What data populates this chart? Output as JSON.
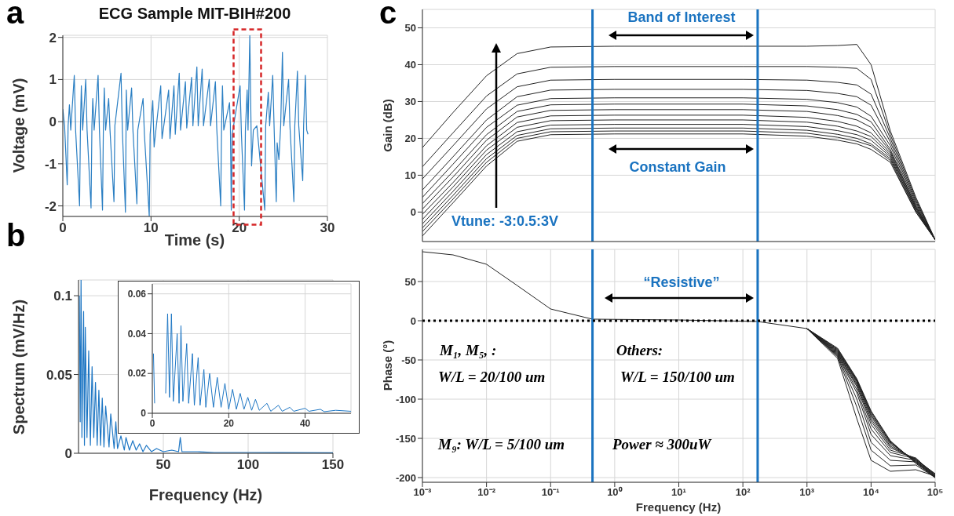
{
  "chart_data": [
    {
      "type": "line",
      "title": "ECG Sample MIT-BIH#200",
      "xlabel": "Time (s)",
      "ylabel": "Voltage (mV)",
      "xlim": [
        0,
        30
      ],
      "xticks": [
        0,
        10,
        20,
        30
      ],
      "ylim": [
        -2.25,
        2.05
      ],
      "yticks": [
        -2,
        -1,
        0,
        1,
        2
      ],
      "grid": true,
      "annotations": [
        "a"
      ],
      "series": [
        {
          "color": "#2b7fc3",
          "x": [
            0,
            0.2,
            0.5,
            0.6,
            0.75,
            0.9,
            1.3,
            1.45,
            1.9,
            2.0,
            2.1,
            2.25,
            2.6,
            2.75,
            3.2,
            3.3,
            3.4,
            3.55,
            4.0,
            4.15,
            4.5,
            4.6,
            4.7,
            4.85,
            5.2,
            5.35,
            5.8,
            5.9,
            6.6,
            6.75,
            7.1,
            7.2,
            7.35,
            7.8,
            7.95,
            8.4,
            8.5,
            9.1,
            9.25,
            9.8,
            9.9,
            10.2,
            10.35,
            10.5,
            11.1,
            11.25,
            12.0,
            12.15,
            12.6,
            12.75,
            13.2,
            13.35,
            13.9,
            14.05,
            14.6,
            14.75,
            15.2,
            15.35,
            15.8,
            15.95,
            16.6,
            16.75,
            17.3,
            17.45,
            17.9,
            18.0,
            18.1,
            18.25,
            18.9,
            19.0,
            19.1,
            19.2,
            20.1,
            20.25,
            20.6,
            20.7,
            20.9,
            21.0,
            21.2,
            21.4,
            21.6,
            22.0,
            22.9,
            23.0,
            23.3,
            23.45,
            23.8,
            23.95,
            24.2,
            24.3,
            24.5,
            24.7,
            24.9,
            25.05,
            25.6,
            25.75,
            26.2,
            26.3,
            26.6,
            26.75,
            27.2,
            27.3,
            27.5,
            27.65,
            27.8
          ],
          "values": [
            0.3,
            -0.1,
            -1.5,
            -0.1,
            0.4,
            -0.2,
            1.1,
            -0.2,
            -2.0,
            -0.1,
            0.85,
            -0.2,
            1.0,
            -0.2,
            -2.05,
            -0.1,
            0.55,
            -0.2,
            1.1,
            -0.2,
            -2.1,
            -0.1,
            0.8,
            -0.2,
            0.55,
            -0.2,
            -1.9,
            -0.1,
            1.15,
            -0.2,
            -2.15,
            0.75,
            -0.2,
            0.8,
            -0.2,
            -1.95,
            -0.2,
            0.55,
            -0.3,
            -2.25,
            -0.3,
            0.5,
            -0.6,
            -0.3,
            0.85,
            -0.4,
            0.75,
            -0.4,
            0.85,
            -0.3,
            1.15,
            -0.2,
            0.95,
            -0.15,
            1.05,
            -0.1,
            1.3,
            -0.1,
            1.25,
            -0.1,
            1.0,
            -0.1,
            0.95,
            -0.15,
            -2.0,
            -0.1,
            0.85,
            -0.2,
            0.45,
            -0.1,
            -2.1,
            -0.3,
            0.85,
            -0.3,
            -2.1,
            -0.2,
            0.75,
            -0.2,
            2.05,
            -1.05,
            -0.2,
            -0.1,
            -2.1,
            -0.1,
            0.7,
            -0.1,
            1.1,
            -0.1,
            -1.9,
            -0.5,
            -0.9,
            -0.1,
            1.65,
            -0.1,
            1.0,
            -0.1,
            -1.9,
            -0.1,
            1.2,
            -0.1,
            -1.4,
            -0.1,
            1.1,
            -0.2,
            -0.3
          ]
        }
      ]
    },
    {
      "type": "line",
      "xlabel": "Frequency (Hz)",
      "ylabel": "Spectrum (mV/Hz)",
      "xlim": [
        0,
        150
      ],
      "xticks": [
        50,
        100,
        150
      ],
      "ylim": [
        0,
        0.11
      ],
      "yticks": [
        0,
        0.05,
        0.1
      ],
      "grid": true,
      "annotations": [
        "b"
      ],
      "series": [
        {
          "color": "#1f77c4",
          "x": [
            0.5,
            1,
            1.5,
            2,
            3,
            3.5,
            4,
            5,
            6,
            7,
            8,
            9,
            10,
            11,
            12,
            13,
            14,
            15,
            16,
            18,
            19,
            21,
            22,
            23,
            25,
            27,
            28,
            30,
            32,
            34,
            36,
            38,
            40,
            43,
            46,
            50,
            55,
            59,
            60,
            61,
            70,
            80,
            100,
            120,
            150
          ],
          "values": [
            0.1,
            0.02,
            0.11,
            0.01,
            0.09,
            0.005,
            0.08,
            0.01,
            0.065,
            0.005,
            0.055,
            0.01,
            0.045,
            0.005,
            0.04,
            0.005,
            0.035,
            0.004,
            0.03,
            0.004,
            0.025,
            0.003,
            0.02,
            0.003,
            0.011,
            0.002,
            0.01,
            0.002,
            0.008,
            0.002,
            0.006,
            0.001,
            0.005,
            0.001,
            0.003,
            0.001,
            0.002,
            0.001,
            0.01,
            0.001,
            0.001,
            0.0005,
            0.0005,
            0.0004,
            0.0003
          ]
        }
      ]
    },
    {
      "type": "line",
      "xlim": [
        0,
        52
      ],
      "xticks": [
        0,
        20,
        40
      ],
      "ylim": [
        0,
        0.065
      ],
      "yticks": [
        0,
        0.02,
        0.04,
        0.06
      ],
      "grid": true,
      "series": [
        {
          "color": "#1f77c4",
          "x": [
            0.3,
            0.6,
            1,
            3.5,
            4,
            4.5,
            5,
            5.5,
            6.5,
            7,
            7.5,
            8,
            9,
            9.5,
            10.5,
            11,
            12,
            12.5,
            13.5,
            14,
            15,
            16,
            17,
            18,
            19,
            20,
            21,
            22,
            23,
            24,
            25,
            26,
            27,
            28,
            30,
            31,
            33,
            34,
            36,
            37,
            40,
            41,
            44,
            45,
            48,
            52
          ],
          "values": [
            0.03,
            0.005,
            null,
            0.01,
            0.05,
            0.008,
            0.05,
            0.006,
            0.04,
            0.005,
            0.044,
            0.006,
            0.035,
            0.005,
            0.03,
            0.004,
            0.028,
            0.004,
            0.022,
            0.003,
            0.02,
            0.003,
            0.018,
            0.003,
            0.015,
            0.002,
            0.012,
            0.002,
            0.01,
            0.002,
            0.008,
            0.0015,
            0.007,
            0.0015,
            0.005,
            0.001,
            0.004,
            0.001,
            0.003,
            0.001,
            0.0025,
            0.001,
            0.002,
            0.0008,
            0.0015,
            0.001
          ]
        }
      ]
    },
    {
      "type": "line",
      "ylabel": "Gain (dB)",
      "log": "x",
      "xlim": [
        0.001,
        100000
      ],
      "xticks": [
        0.001,
        0.01,
        0.1,
        1,
        10,
        100,
        1000,
        10000,
        100000
      ],
      "ylim": [
        -8,
        55
      ],
      "yticks": [
        0,
        10,
        20,
        30,
        40,
        50
      ],
      "grid": true,
      "tick_labels": "y",
      "annotations": [
        "c",
        "Band of Interest",
        "Constant Gain",
        "Vtune: -3:0.5:3V"
      ],
      "ref_lines": [
        {
          "axis": "x",
          "value": 0.45,
          "color": "#1a73c0"
        },
        {
          "axis": "x",
          "value": 170,
          "color": "#1a73c0"
        }
      ],
      "x": [
        0.001,
        0.003,
        0.01,
        0.03,
        0.1,
        1,
        100,
        1000,
        3000,
        6000,
        10000,
        20000,
        50000,
        100000
      ],
      "series": [
        {
          "color": "#222222",
          "values": [
            17.5,
            27,
            37,
            43,
            44.8,
            45,
            45,
            45,
            45.2,
            45.5,
            40,
            22,
            4,
            -7.5
          ]
        },
        {
          "color": "#222222",
          "values": [
            12.3,
            21.5,
            31.5,
            37.5,
            39.3,
            39.5,
            39.5,
            39.5,
            39.3,
            39,
            36,
            21,
            3.5,
            -7.5
          ]
        },
        {
          "color": "#222222",
          "values": [
            9,
            18,
            28,
            34,
            35.8,
            36,
            36,
            35.8,
            35.2,
            34.5,
            32,
            20,
            3,
            -7.5
          ]
        },
        {
          "color": "#222222",
          "values": [
            6,
            15,
            25,
            31.3,
            33.1,
            33.3,
            33.3,
            33,
            32.2,
            31.3,
            29,
            19,
            2.5,
            -7.5
          ]
        },
        {
          "color": "#222222",
          "values": [
            4,
            13,
            23,
            29,
            30.8,
            31,
            31,
            30.6,
            29.7,
            28.5,
            26,
            18,
            2,
            -7.5
          ]
        },
        {
          "color": "#222222",
          "values": [
            2.3,
            11,
            21,
            27.3,
            29.1,
            29.3,
            29.3,
            28.8,
            27.8,
            26.5,
            24.5,
            17,
            1.5,
            -7.5
          ]
        },
        {
          "color": "#222222",
          "values": [
            0.8,
            9.5,
            19.5,
            25.8,
            27.6,
            27.8,
            27.8,
            27.3,
            26.2,
            25,
            23,
            16.5,
            1.5,
            -7.5
          ]
        },
        {
          "color": "#222222",
          "values": [
            -0.6,
            8,
            18,
            24.3,
            26.1,
            26.3,
            26.3,
            25.7,
            24.6,
            23.3,
            21.5,
            16,
            1,
            -7.5
          ]
        },
        {
          "color": "#222222",
          "values": [
            -2,
            6.8,
            16.8,
            23,
            24.8,
            25,
            25,
            24.4,
            23.3,
            22,
            20.5,
            15.5,
            1,
            -7.5
          ]
        },
        {
          "color": "#222222",
          "values": [
            -3.2,
            5.6,
            15.6,
            21.8,
            23.6,
            23.8,
            23.8,
            23.2,
            22.1,
            21,
            19.5,
            15,
            0.5,
            -7.5
          ]
        },
        {
          "color": "#222222",
          "values": [
            -4.3,
            4.5,
            14.5,
            20.8,
            22.6,
            22.8,
            22.8,
            22.2,
            21.1,
            20,
            18.5,
            14.5,
            0.5,
            -7.5
          ]
        },
        {
          "color": "#222222",
          "values": [
            -5.3,
            3.5,
            13.5,
            20,
            21.8,
            22,
            22,
            21.4,
            20.3,
            19.2,
            18,
            14,
            0,
            -7.5
          ]
        },
        {
          "color": "#222222",
          "values": [
            -6.5,
            2.5,
            12.5,
            19.2,
            21,
            21.2,
            21.2,
            20.6,
            19.5,
            18.5,
            17,
            13.5,
            0,
            -7.5
          ]
        }
      ]
    },
    {
      "type": "line",
      "xlabel": "Frequency (Hz)",
      "ylabel": "Phase (°)",
      "log": "x",
      "xlim": [
        0.001,
        100000
      ],
      "xticks": [
        {
          "value": 0.001,
          "label": "10⁻³"
        },
        {
          "value": 0.01,
          "label": "10⁻²"
        },
        {
          "value": 0.1,
          "label": "10⁻¹"
        },
        {
          "value": 1,
          "label": "10⁰"
        },
        {
          "value": 10,
          "label": "10¹"
        },
        {
          "value": 100,
          "label": "10²"
        },
        {
          "value": 1000,
          "label": "10³"
        },
        {
          "value": 10000,
          "label": "10⁴"
        },
        {
          "value": 100000,
          "label": "10⁵"
        }
      ],
      "ylim": [
        -206,
        91
      ],
      "yticks": [
        -200,
        -150,
        -100,
        -50,
        0,
        50
      ],
      "grid": true,
      "annotations": [
        "“Resistive”",
        "M₁, M₅, :",
        "W/L = 20/100 um",
        "M₉: W/L = 5/100 um",
        "Others:",
        "W/L = 150/100 um",
        "Power ≈ 300uW"
      ],
      "ref_lines": [
        {
          "axis": "x",
          "value": 0.45,
          "color": "#1a73c0"
        },
        {
          "axis": "x",
          "value": 170,
          "color": "#1a73c0"
        },
        {
          "axis": "y",
          "value": 0,
          "color": "#000000",
          "line_style": "dotted"
        }
      ],
      "x": [
        0.001,
        0.003,
        0.01,
        0.03,
        0.1,
        0.45,
        10,
        170,
        1000,
        3000,
        6000,
        10000,
        20000,
        50000,
        100000
      ],
      "series": [
        {
          "color": "#222222",
          "values": [
            88,
            84,
            72,
            45,
            15,
            2,
            1,
            -1,
            -10,
            -48,
            -125,
            -178,
            -192,
            -190,
            -198
          ]
        },
        {
          "color": "#222222",
          "values": [
            null,
            null,
            null,
            null,
            null,
            null,
            null,
            null,
            -10,
            -46,
            -110,
            -165,
            -185,
            -184,
            -200
          ]
        },
        {
          "color": "#222222",
          "values": [
            null,
            null,
            null,
            null,
            null,
            null,
            null,
            null,
            -10,
            -45,
            -100,
            -155,
            -178,
            -180,
            -200
          ]
        },
        {
          "color": "#222222",
          "values": [
            null,
            null,
            null,
            null,
            null,
            null,
            null,
            null,
            -10,
            -44,
            -92,
            -145,
            -172,
            -178,
            -200
          ]
        },
        {
          "color": "#222222",
          "values": [
            null,
            null,
            null,
            null,
            null,
            null,
            null,
            null,
            -10,
            -43,
            -88,
            -138,
            -168,
            -176,
            -199
          ]
        },
        {
          "color": "#222222",
          "values": [
            null,
            null,
            null,
            null,
            null,
            null,
            null,
            null,
            -10,
            -42,
            -84,
            -132,
            -165,
            -175,
            -198
          ]
        },
        {
          "color": "#222222",
          "values": [
            null,
            null,
            null,
            null,
            null,
            null,
            null,
            null,
            -10,
            -41,
            -82,
            -128,
            -162,
            -176,
            -196
          ]
        },
        {
          "color": "#222222",
          "values": [
            null,
            null,
            null,
            null,
            null,
            null,
            null,
            null,
            -10,
            -40,
            -80,
            -125,
            -160,
            -177,
            -195
          ]
        },
        {
          "color": "#222222",
          "values": [
            null,
            null,
            null,
            null,
            null,
            null,
            null,
            null,
            -10,
            -39,
            -78,
            -122,
            -158,
            -178,
            -196
          ]
        },
        {
          "color": "#222222",
          "values": [
            null,
            null,
            null,
            null,
            null,
            null,
            null,
            null,
            -10,
            -38,
            -77,
            -120,
            -156,
            -179,
            -197
          ]
        },
        {
          "color": "#222222",
          "values": [
            null,
            null,
            null,
            null,
            null,
            null,
            null,
            null,
            -10,
            -37,
            -76,
            -118,
            -155,
            -180,
            -198
          ]
        },
        {
          "color": "#222222",
          "values": [
            null,
            null,
            null,
            null,
            null,
            null,
            null,
            null,
            -10,
            -36,
            -75,
            -116,
            -154,
            -181,
            -199
          ]
        },
        {
          "color": "#222222",
          "values": [
            null,
            null,
            null,
            null,
            null,
            null,
            null,
            null,
            -10,
            -35,
            -74,
            -115,
            -153,
            -182,
            -200
          ]
        }
      ]
    }
  ]
}
